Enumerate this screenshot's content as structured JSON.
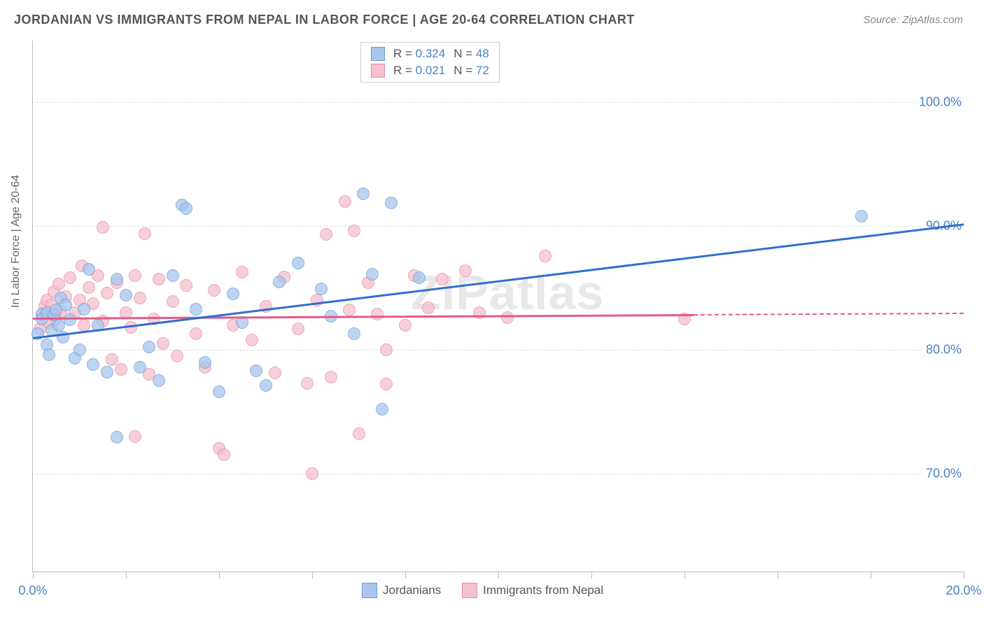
{
  "header": {
    "title": "JORDANIAN VS IMMIGRANTS FROM NEPAL IN LABOR FORCE | AGE 20-64 CORRELATION CHART",
    "source": "Source: ZipAtlas.com"
  },
  "chart": {
    "type": "scatter",
    "ylabel": "In Labor Force | Age 20-64",
    "watermark": "ZIPatlas",
    "xlim": [
      0,
      20
    ],
    "ylim": [
      62,
      105
    ],
    "xtick_positions": [
      0,
      2,
      4,
      6,
      8,
      10,
      12,
      14,
      16,
      18,
      20
    ],
    "xtick_labels": {
      "0": "0.0%",
      "20": "20.0%"
    },
    "ytick_positions": [
      70,
      80,
      90,
      100
    ],
    "ytick_labels": [
      "70.0%",
      "80.0%",
      "90.0%",
      "100.0%"
    ],
    "grid_color": "#dddddd",
    "axis_color": "#bbbbbb",
    "tick_label_color": "#4a80c7",
    "background_color": "#ffffff",
    "series": {
      "jordanians": {
        "label": "Jordanians",
        "fill": "#a8c6ec",
        "stroke": "#6a9bd8",
        "trend_color": "#2f6fd0",
        "trend": {
          "x0": 0,
          "y0": 81.0,
          "x1": 20,
          "y1": 90.2,
          "solid_until_x": 20
        },
        "R": "0.324",
        "N": "48",
        "points": [
          [
            0.1,
            81.3
          ],
          [
            0.2,
            82.9
          ],
          [
            0.2,
            82.5
          ],
          [
            0.3,
            80.4
          ],
          [
            0.3,
            83.0
          ],
          [
            0.35,
            79.6
          ],
          [
            0.4,
            81.6
          ],
          [
            0.45,
            82.8
          ],
          [
            0.5,
            83.2
          ],
          [
            0.55,
            82.0
          ],
          [
            0.6,
            84.2
          ],
          [
            0.65,
            81.0
          ],
          [
            0.7,
            83.6
          ],
          [
            0.8,
            82.4
          ],
          [
            0.9,
            79.3
          ],
          [
            1.0,
            80.0
          ],
          [
            1.1,
            83.3
          ],
          [
            1.2,
            86.5
          ],
          [
            1.3,
            78.8
          ],
          [
            1.4,
            82.0
          ],
          [
            1.6,
            78.2
          ],
          [
            1.8,
            72.9
          ],
          [
            1.8,
            85.7
          ],
          [
            2.0,
            84.4
          ],
          [
            2.3,
            78.6
          ],
          [
            2.5,
            80.2
          ],
          [
            2.7,
            77.5
          ],
          [
            3.0,
            86.0
          ],
          [
            3.2,
            91.7
          ],
          [
            3.3,
            91.4
          ],
          [
            3.5,
            83.3
          ],
          [
            3.7,
            79.0
          ],
          [
            4.0,
            76.6
          ],
          [
            4.3,
            84.5
          ],
          [
            4.5,
            82.2
          ],
          [
            4.8,
            78.3
          ],
          [
            5.0,
            77.1
          ],
          [
            5.3,
            85.5
          ],
          [
            5.7,
            87.0
          ],
          [
            6.2,
            84.9
          ],
          [
            6.4,
            82.7
          ],
          [
            6.9,
            81.3
          ],
          [
            7.1,
            92.6
          ],
          [
            7.3,
            86.1
          ],
          [
            7.5,
            75.2
          ],
          [
            7.7,
            91.9
          ],
          [
            8.3,
            85.8
          ],
          [
            17.8,
            90.8
          ]
        ]
      },
      "nepal": {
        "label": "Immigrants from Nepal",
        "fill": "#f5c0cd",
        "stroke": "#e88ba4",
        "trend_color": "#e35a8a",
        "trend": {
          "x0": 0,
          "y0": 82.6,
          "x1": 20,
          "y1": 83.0,
          "solid_until_x": 14.2
        },
        "R": "0.021",
        "N": "72",
        "points": [
          [
            0.15,
            81.7
          ],
          [
            0.2,
            82.8
          ],
          [
            0.25,
            83.5
          ],
          [
            0.3,
            84.0
          ],
          [
            0.35,
            82.2
          ],
          [
            0.4,
            83.6
          ],
          [
            0.45,
            84.7
          ],
          [
            0.5,
            82.5
          ],
          [
            0.55,
            85.3
          ],
          [
            0.6,
            83.1
          ],
          [
            0.7,
            84.3
          ],
          [
            0.8,
            85.8
          ],
          [
            0.9,
            83.0
          ],
          [
            1.0,
            84.0
          ],
          [
            1.05,
            86.8
          ],
          [
            1.1,
            82.0
          ],
          [
            1.2,
            85.0
          ],
          [
            1.3,
            83.7
          ],
          [
            1.4,
            86.0
          ],
          [
            1.5,
            82.3
          ],
          [
            1.5,
            89.9
          ],
          [
            1.6,
            84.6
          ],
          [
            1.7,
            79.2
          ],
          [
            1.8,
            85.4
          ],
          [
            1.9,
            78.4
          ],
          [
            2.0,
            83.0
          ],
          [
            2.1,
            81.8
          ],
          [
            2.2,
            86.0
          ],
          [
            2.2,
            73.0
          ],
          [
            2.3,
            84.2
          ],
          [
            2.4,
            89.4
          ],
          [
            2.5,
            78.0
          ],
          [
            2.6,
            82.5
          ],
          [
            2.7,
            85.7
          ],
          [
            2.8,
            80.5
          ],
          [
            3.0,
            83.9
          ],
          [
            3.1,
            79.5
          ],
          [
            3.3,
            85.2
          ],
          [
            3.5,
            81.3
          ],
          [
            3.7,
            78.6
          ],
          [
            3.9,
            84.8
          ],
          [
            4.0,
            72.0
          ],
          [
            4.1,
            71.5
          ],
          [
            4.3,
            82.0
          ],
          [
            4.5,
            86.3
          ],
          [
            4.7,
            80.8
          ],
          [
            5.0,
            83.5
          ],
          [
            5.2,
            78.1
          ],
          [
            5.4,
            85.9
          ],
          [
            5.7,
            81.7
          ],
          [
            5.9,
            77.3
          ],
          [
            6.0,
            70.0
          ],
          [
            6.1,
            84.0
          ],
          [
            6.3,
            89.3
          ],
          [
            6.4,
            77.8
          ],
          [
            6.7,
            92.0
          ],
          [
            6.8,
            83.2
          ],
          [
            6.9,
            89.6
          ],
          [
            7.0,
            73.2
          ],
          [
            7.2,
            85.4
          ],
          [
            7.4,
            82.9
          ],
          [
            7.6,
            80.0
          ],
          [
            7.6,
            77.2
          ],
          [
            8.0,
            82.0
          ],
          [
            8.2,
            86.0
          ],
          [
            8.5,
            83.4
          ],
          [
            8.8,
            85.7
          ],
          [
            9.3,
            86.4
          ],
          [
            9.6,
            83.0
          ],
          [
            10.2,
            82.6
          ],
          [
            11.0,
            87.6
          ],
          [
            14.0,
            82.5
          ]
        ]
      }
    },
    "stats_legend": {
      "rows": [
        {
          "swatch_fill": "#a8c6ec",
          "swatch_stroke": "#6a9bd8",
          "R": "0.324",
          "N": "48"
        },
        {
          "swatch_fill": "#f5c0cd",
          "swatch_stroke": "#e88ba4",
          "R": "0.021",
          "N": "72"
        }
      ]
    },
    "bottom_legend": [
      {
        "swatch_fill": "#a8c6ec",
        "swatch_stroke": "#6a9bd8",
        "label": "Jordanians"
      },
      {
        "swatch_fill": "#f5c0cd",
        "swatch_stroke": "#e88ba4",
        "label": "Immigrants from Nepal"
      }
    ]
  }
}
